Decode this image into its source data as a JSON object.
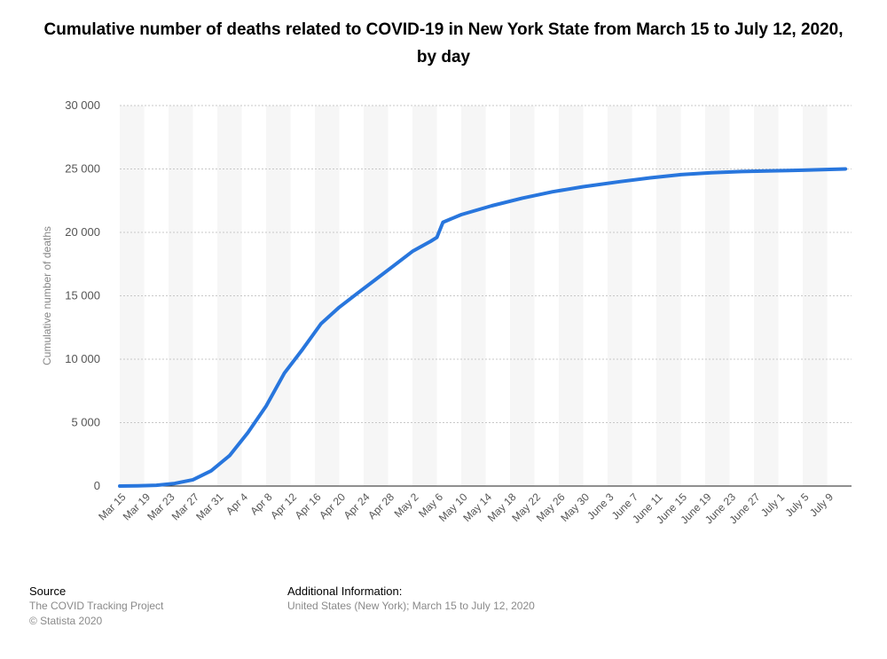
{
  "chart_data": {
    "type": "line",
    "title": "Cumulative number of deaths related to COVID-19 in New York State from March 15 to July 12, 2020, by day",
    "xlabel": "",
    "ylabel": "Cumulative number of deaths",
    "ylim": [
      0,
      30000
    ],
    "yticks": [
      0,
      5000,
      10000,
      15000,
      20000,
      25000,
      30000
    ],
    "ytick_labels": [
      "0",
      "5 000",
      "10 000",
      "15 000",
      "20 000",
      "25 000",
      "30 000"
    ],
    "xtick_labels": [
      "Mar 15",
      "Mar 19",
      "Mar 23",
      "Mar 27",
      "Mar 31",
      "Apr 4",
      "Apr 8",
      "Apr 12",
      "Apr 16",
      "Apr 20",
      "Apr 24",
      "Apr 28",
      "May 2",
      "May 6",
      "May 10",
      "May 14",
      "May 18",
      "May 22",
      "May 26",
      "May 30",
      "June 3",
      "June 7",
      "June 11",
      "June 15",
      "June 19",
      "June 23",
      "June 27",
      "July 1",
      "July 5",
      "July 9"
    ],
    "grid": true,
    "legend": "none",
    "line_color": "#2876dd",
    "x": [
      "2020-03-15",
      "2020-03-18",
      "2020-03-21",
      "2020-03-24",
      "2020-03-27",
      "2020-03-30",
      "2020-04-02",
      "2020-04-05",
      "2020-04-08",
      "2020-04-11",
      "2020-04-14",
      "2020-04-17",
      "2020-04-20",
      "2020-04-23",
      "2020-04-26",
      "2020-04-29",
      "2020-05-02",
      "2020-05-05",
      "2020-05-06",
      "2020-05-07",
      "2020-05-10",
      "2020-05-15",
      "2020-05-20",
      "2020-05-25",
      "2020-05-30",
      "2020-06-05",
      "2020-06-10",
      "2020-06-15",
      "2020-06-20",
      "2020-06-25",
      "2020-06-30",
      "2020-07-05",
      "2020-07-12"
    ],
    "values": [
      3,
      20,
      60,
      200,
      500,
      1200,
      2400,
      4200,
      6300,
      8900,
      10800,
      12800,
      14100,
      15200,
      16300,
      17400,
      18500,
      19300,
      19600,
      20800,
      21400,
      22100,
      22700,
      23200,
      23600,
      24000,
      24300,
      24550,
      24700,
      24800,
      24850,
      24900,
      25000
    ]
  },
  "footer": {
    "source_heading": "Source",
    "source_line1": "The COVID Tracking Project",
    "source_line2": "© Statista 2020",
    "info_heading": "Additional Information:",
    "info_line1": "United States (New York); March 15 to July 12, 2020"
  }
}
